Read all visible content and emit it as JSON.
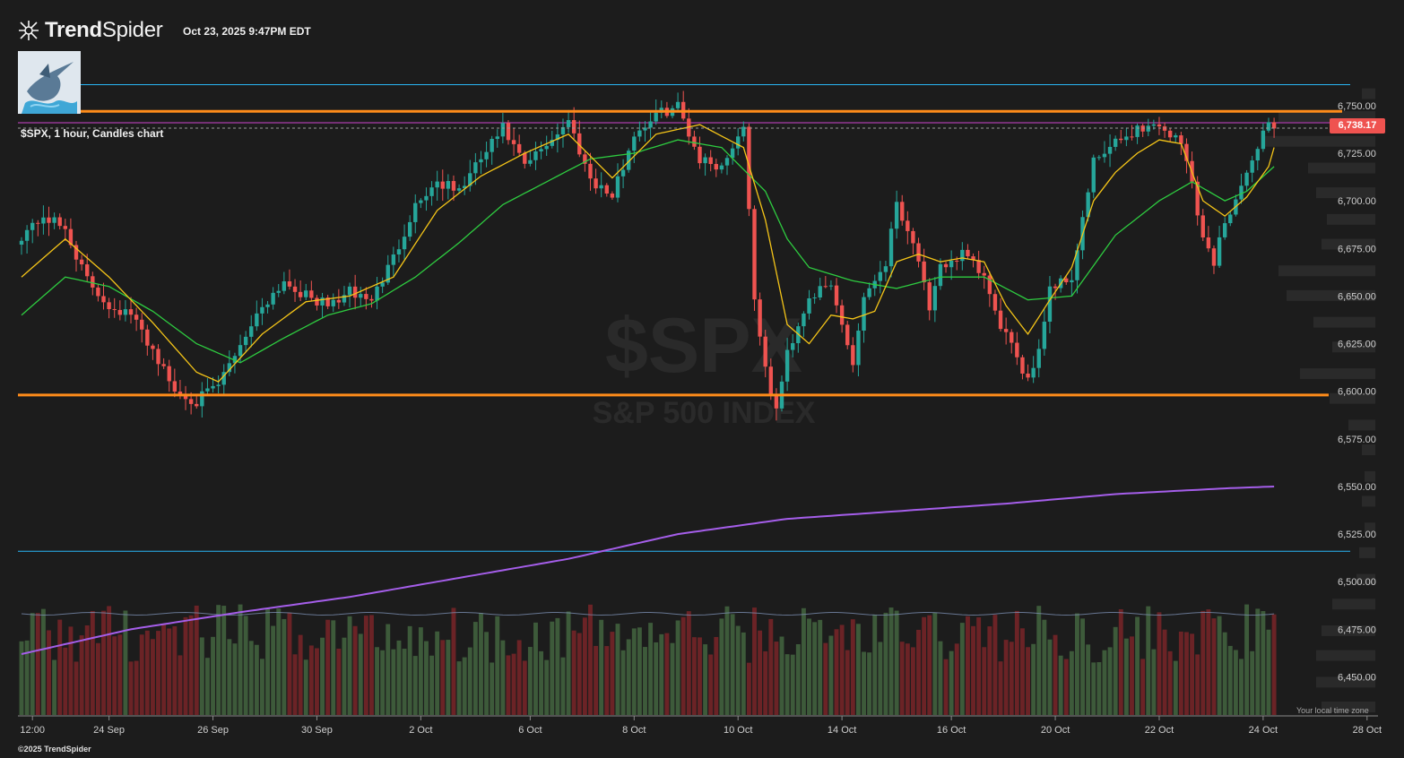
{
  "app": {
    "brand_bold": "Trend",
    "brand_light": "Spider",
    "timestamp": "Oct 23, 2025 9:47PM EDT",
    "chart_label": "$SPX, 1 hour, Candles chart",
    "tz_label": "Your local time zone",
    "copyright": "©2025 TrendSpider",
    "current_price_label": "6,738.17",
    "watermark_ticker": "$SPX",
    "watermark_name": "S&P 500 INDEX"
  },
  "colors": {
    "background": "#1c1c1c",
    "up": "#26a69a",
    "down": "#ef5350",
    "ema_fast": "#f5c518",
    "ema_slow": "#2ecc40",
    "sma_long": "#a55eea",
    "sr_level": "#ff8c1a",
    "cyan_level": "#29b6f6",
    "magenta_level": "#cc44cc",
    "vol_up": "#3d5a3a",
    "vol_down": "#6b2326",
    "volume_profile": "#2a2a2a"
  },
  "chart_data": {
    "type": "candlestick",
    "symbol": "$SPX",
    "timeframe": "1 hour",
    "ylim": [
      6430,
      6765
    ],
    "y_ticks": [
      6450,
      6475,
      6500,
      6525,
      6550,
      6575,
      6600,
      6625,
      6650,
      6675,
      6700,
      6725,
      6750
    ],
    "y_tick_labels": [
      "6,450.00",
      "6,475.00",
      "6,500.00",
      "6,525.00",
      "6,550.00",
      "6,575.00",
      "6,600.00",
      "6,625.00",
      "6,650.00",
      "6,675.00",
      "6,700.00",
      "6,725.00",
      "6,750.00"
    ],
    "x_ticks": [
      {
        "label": "12:00",
        "index": 2
      },
      {
        "label": "24 Sep",
        "index": 16
      },
      {
        "label": "26 Sep",
        "index": 35
      },
      {
        "label": "30 Sep",
        "index": 54
      },
      {
        "label": "2 Oct",
        "index": 73
      },
      {
        "label": "6 Oct",
        "index": 93
      },
      {
        "label": "8 Oct",
        "index": 112
      },
      {
        "label": "10 Oct",
        "index": 131
      },
      {
        "label": "14 Oct",
        "index": 150
      },
      {
        "label": "16 Oct",
        "index": 170
      },
      {
        "label": "20 Oct",
        "index": 189
      },
      {
        "label": "22 Oct",
        "index": 208
      },
      {
        "label": "24 Oct",
        "index": 227
      },
      {
        "label": "28 Oct",
        "index": 246
      }
    ],
    "x_domain": [
      0,
      248
    ],
    "current_price": 6738.17,
    "levels": {
      "resistance": 6747,
      "support": 6598,
      "magenta": 6741,
      "cyan_top": 6761,
      "cyan_bottom": 6516
    },
    "close_anchors": [
      [
        0,
        6682
      ],
      [
        4,
        6692
      ],
      [
        8,
        6685
      ],
      [
        12,
        6658
      ],
      [
        16,
        6645
      ],
      [
        20,
        6640
      ],
      [
        24,
        6622
      ],
      [
        28,
        6600
      ],
      [
        32,
        6595
      ],
      [
        36,
        6603
      ],
      [
        40,
        6625
      ],
      [
        44,
        6645
      ],
      [
        48,
        6658
      ],
      [
        52,
        6650
      ],
      [
        56,
        6645
      ],
      [
        60,
        6652
      ],
      [
        64,
        6648
      ],
      [
        68,
        6670
      ],
      [
        72,
        6698
      ],
      [
        76,
        6710
      ],
      [
        80,
        6705
      ],
      [
        84,
        6722
      ],
      [
        88,
        6738
      ],
      [
        92,
        6718
      ],
      [
        96,
        6730
      ],
      [
        100,
        6742
      ],
      [
        104,
        6712
      ],
      [
        108,
        6702
      ],
      [
        112,
        6735
      ],
      [
        116,
        6745
      ],
      [
        120,
        6750
      ],
      [
        124,
        6722
      ],
      [
        128,
        6718
      ],
      [
        132,
        6740
      ],
      [
        134,
        6650
      ],
      [
        136,
        6610
      ],
      [
        138,
        6590
      ],
      [
        140,
        6620
      ],
      [
        144,
        6650
      ],
      [
        148,
        6655
      ],
      [
        150,
        6635
      ],
      [
        152,
        6615
      ],
      [
        154,
        6650
      ],
      [
        158,
        6668
      ],
      [
        160,
        6700
      ],
      [
        164,
        6670
      ],
      [
        166,
        6640
      ],
      [
        168,
        6665
      ],
      [
        172,
        6672
      ],
      [
        176,
        6660
      ],
      [
        178,
        6640
      ],
      [
        180,
        6630
      ],
      [
        182,
        6615
      ],
      [
        184,
        6608
      ],
      [
        186,
        6622
      ],
      [
        188,
        6655
      ],
      [
        192,
        6660
      ],
      [
        194,
        6690
      ],
      [
        196,
        6720
      ],
      [
        200,
        6730
      ],
      [
        204,
        6738
      ],
      [
        208,
        6740
      ],
      [
        212,
        6730
      ],
      [
        214,
        6710
      ],
      [
        216,
        6680
      ],
      [
        218,
        6668
      ],
      [
        220,
        6690
      ],
      [
        224,
        6712
      ],
      [
        226,
        6730
      ],
      [
        228,
        6742
      ],
      [
        229,
        6738
      ]
    ],
    "ema_fast_anchors": [
      [
        0,
        6660
      ],
      [
        8,
        6680
      ],
      [
        16,
        6660
      ],
      [
        24,
        6636
      ],
      [
        32,
        6610
      ],
      [
        36,
        6605
      ],
      [
        44,
        6630
      ],
      [
        52,
        6647
      ],
      [
        60,
        6650
      ],
      [
        68,
        6660
      ],
      [
        76,
        6695
      ],
      [
        84,
        6713
      ],
      [
        92,
        6725
      ],
      [
        100,
        6735
      ],
      [
        108,
        6712
      ],
      [
        116,
        6735
      ],
      [
        124,
        6740
      ],
      [
        132,
        6728
      ],
      [
        136,
        6690
      ],
      [
        140,
        6635
      ],
      [
        144,
        6625
      ],
      [
        148,
        6640
      ],
      [
        152,
        6638
      ],
      [
        156,
        6642
      ],
      [
        160,
        6668
      ],
      [
        164,
        6672
      ],
      [
        168,
        6668
      ],
      [
        172,
        6670
      ],
      [
        176,
        6668
      ],
      [
        180,
        6645
      ],
      [
        184,
        6630
      ],
      [
        188,
        6648
      ],
      [
        192,
        6665
      ],
      [
        196,
        6700
      ],
      [
        200,
        6715
      ],
      [
        204,
        6725
      ],
      [
        208,
        6732
      ],
      [
        212,
        6730
      ],
      [
        216,
        6700
      ],
      [
        220,
        6692
      ],
      [
        224,
        6702
      ],
      [
        228,
        6718
      ],
      [
        229,
        6728
      ]
    ],
    "ema_slow_anchors": [
      [
        0,
        6640
      ],
      [
        8,
        6660
      ],
      [
        16,
        6655
      ],
      [
        24,
        6642
      ],
      [
        32,
        6625
      ],
      [
        40,
        6615
      ],
      [
        48,
        6628
      ],
      [
        56,
        6640
      ],
      [
        64,
        6646
      ],
      [
        72,
        6660
      ],
      [
        80,
        6678
      ],
      [
        88,
        6698
      ],
      [
        96,
        6710
      ],
      [
        104,
        6722
      ],
      [
        112,
        6725
      ],
      [
        120,
        6732
      ],
      [
        128,
        6728
      ],
      [
        136,
        6705
      ],
      [
        140,
        6680
      ],
      [
        144,
        6665
      ],
      [
        152,
        6658
      ],
      [
        160,
        6654
      ],
      [
        168,
        6660
      ],
      [
        176,
        6660
      ],
      [
        184,
        6648
      ],
      [
        192,
        6650
      ],
      [
        200,
        6682
      ],
      [
        208,
        6700
      ],
      [
        214,
        6710
      ],
      [
        220,
        6700
      ],
      [
        224,
        6705
      ],
      [
        229,
        6718
      ]
    ],
    "sma_long_anchors": [
      [
        0,
        6462
      ],
      [
        20,
        6475
      ],
      [
        40,
        6484
      ],
      [
        60,
        6492
      ],
      [
        80,
        6502
      ],
      [
        100,
        6512
      ],
      [
        120,
        6525
      ],
      [
        140,
        6533
      ],
      [
        160,
        6537
      ],
      [
        180,
        6541
      ],
      [
        200,
        6546
      ],
      [
        220,
        6549
      ],
      [
        229,
        6550
      ]
    ],
    "volume_profile": [
      {
        "price": 6756,
        "share": 0.05
      },
      {
        "price": 6744,
        "share": 0.36
      },
      {
        "price": 6731,
        "share": 0.41
      },
      {
        "price": 6717,
        "share": 0.25
      },
      {
        "price": 6704,
        "share": 0.22
      },
      {
        "price": 6690,
        "share": 0.18
      },
      {
        "price": 6677,
        "share": 0.2
      },
      {
        "price": 6663,
        "share": 0.36
      },
      {
        "price": 6650,
        "share": 0.33
      },
      {
        "price": 6636,
        "share": 0.23
      },
      {
        "price": 6623,
        "share": 0.16
      },
      {
        "price": 6609,
        "share": 0.28
      },
      {
        "price": 6596,
        "share": 0.17
      },
      {
        "price": 6582,
        "share": 0.1
      },
      {
        "price": 6569,
        "share": 0.05
      },
      {
        "price": 6555,
        "share": 0.04
      },
      {
        "price": 6542,
        "share": 0.05
      },
      {
        "price": 6528,
        "share": 0.04
      },
      {
        "price": 6515,
        "share": 0.06
      },
      {
        "price": 6501,
        "share": 0.07
      },
      {
        "price": 6488,
        "share": 0.16
      },
      {
        "price": 6474,
        "share": 0.2
      },
      {
        "price": 6461,
        "share": 0.22
      },
      {
        "price": 6447,
        "share": 0.22
      },
      {
        "price": 6434,
        "share": 0.2
      }
    ]
  }
}
